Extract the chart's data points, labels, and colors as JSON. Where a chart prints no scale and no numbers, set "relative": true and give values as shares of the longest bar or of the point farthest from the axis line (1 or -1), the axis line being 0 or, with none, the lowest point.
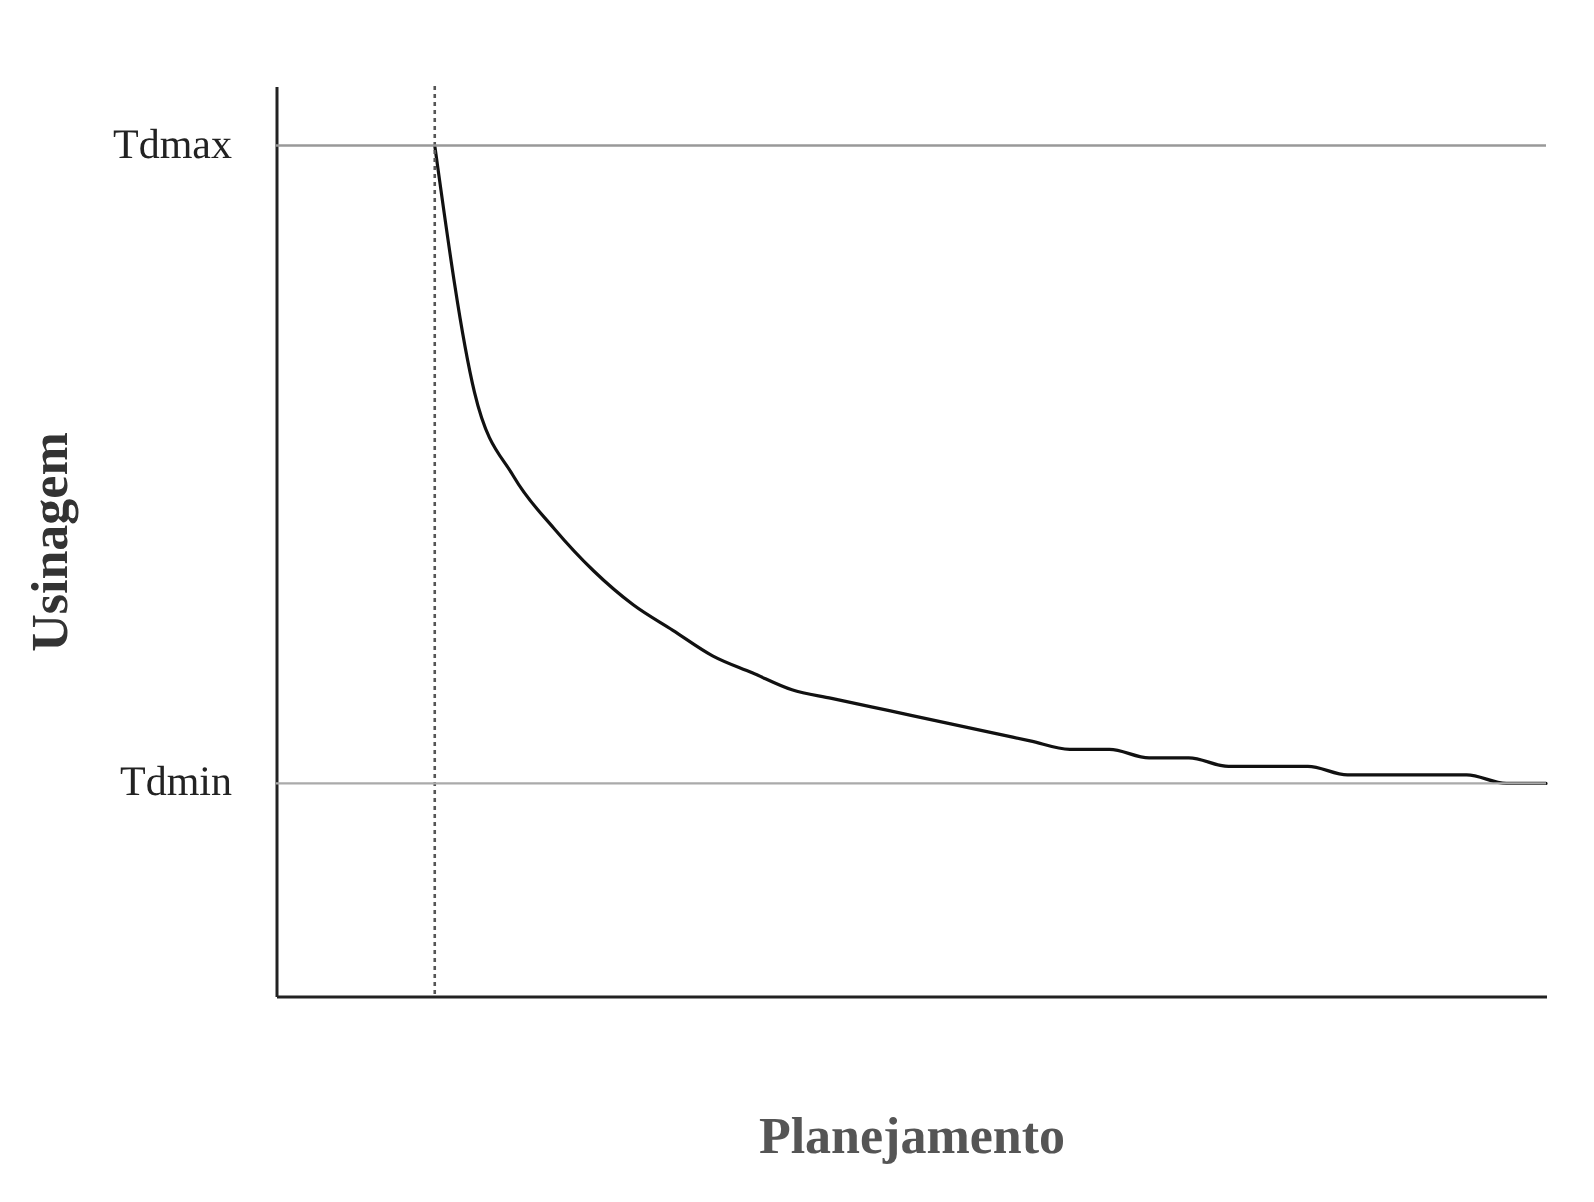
{
  "chart_data": {
    "type": "line",
    "xlabel": "Planejamento",
    "ylabel": "Usinagem",
    "relative": true,
    "categories": [
      null,
      null,
      null,
      null,
      null,
      null,
      null,
      null,
      null,
      null,
      null,
      null,
      null,
      null,
      null,
      null,
      null,
      null,
      null,
      null,
      null,
      null,
      null,
      null,
      null,
      null,
      null,
      null,
      null,
      null,
      null,
      null,
      null
    ],
    "series": [
      {
        "color": "#111111",
        "values": [
          null,
          null,
          null,
          null,
          1.0,
          0.71,
          0.61,
          0.55,
          0.5,
          0.46,
          0.43,
          0.4,
          0.38,
          0.36,
          0.35,
          0.34,
          0.33,
          0.32,
          0.31,
          0.3,
          0.29,
          0.29,
          0.28,
          0.28,
          0.27,
          0.27,
          0.27,
          0.26,
          0.26,
          0.26,
          0.26,
          0.25,
          0.25
        ]
      }
    ],
    "ref_lines": [
      {
        "axis": "y",
        "value": 1.0,
        "label": "Tdmax",
        "color": "#999999",
        "line_style": "solid"
      },
      {
        "axis": "y",
        "value": 0.25,
        "label": "Tdmin",
        "color": "#aaaaaa",
        "line_style": "solid"
      }
    ],
    "marker": "none",
    "line_style": "solid",
    "legend": false
  }
}
